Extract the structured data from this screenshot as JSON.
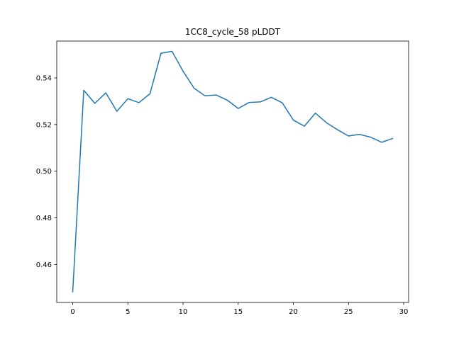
{
  "chart_data": {
    "type": "line",
    "title": "1CC8_cycle_58 pLDDT",
    "xlabel": "",
    "ylabel": "",
    "xlim": [
      -1.45,
      30.45
    ],
    "ylim": [
      0.4437,
      0.5558
    ],
    "xticks": [
      0,
      5,
      10,
      15,
      20,
      25,
      30
    ],
    "yticks": [
      0.46,
      0.48,
      0.5,
      0.52,
      0.54
    ],
    "ytick_labels": [
      "0.46",
      "0.48",
      "0.50",
      "0.52",
      "0.54"
    ],
    "grid": false,
    "series": [
      {
        "color": "#1f77b4",
        "x": [
          0,
          1,
          2,
          3,
          4,
          5,
          6,
          7,
          8,
          9,
          10,
          11,
          12,
          13,
          14,
          15,
          16,
          17,
          18,
          19,
          20,
          21,
          22,
          23,
          24,
          25,
          26,
          27,
          28,
          29
        ],
        "y": [
          0.4483,
          0.5347,
          0.5291,
          0.5336,
          0.5257,
          0.5311,
          0.5294,
          0.5332,
          0.5506,
          0.5514,
          0.5429,
          0.5356,
          0.5323,
          0.5327,
          0.5305,
          0.5269,
          0.5295,
          0.5297,
          0.5317,
          0.5293,
          0.5219,
          0.5193,
          0.5249,
          0.5208,
          0.5178,
          0.5151,
          0.5158,
          0.5146,
          0.5124,
          0.514
        ]
      }
    ]
  }
}
